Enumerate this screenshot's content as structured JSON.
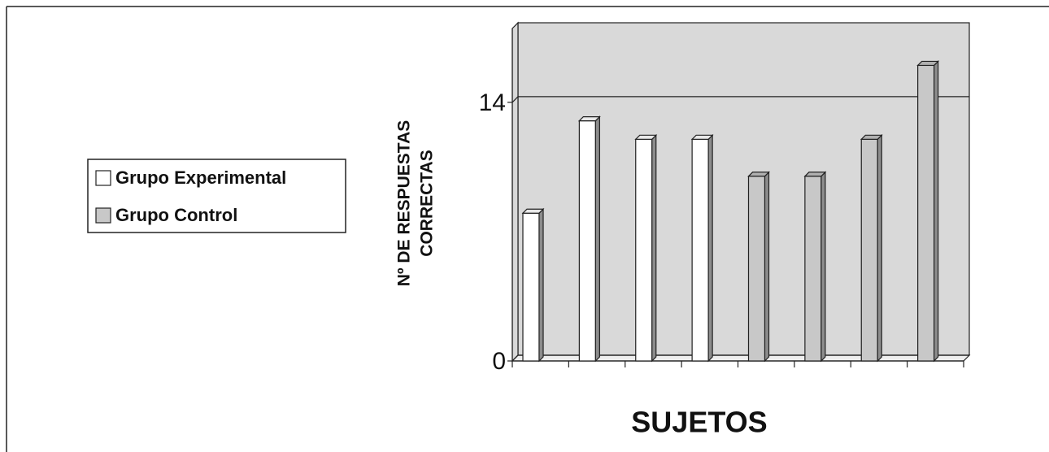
{
  "chart_data": {
    "type": "bar3d",
    "y_label": [
      "Nº DE RESPUESTAS",
      "CORRECTAS"
    ],
    "x_label": "SUJETOS",
    "categories": [
      null,
      null,
      null,
      null,
      null,
      null,
      null,
      null
    ],
    "series": [
      {
        "name": "Grupo Experimental",
        "color": "#ffffff",
        "values": [
          8,
          13,
          12,
          12,
          null,
          null,
          null,
          null
        ]
      },
      {
        "name": "Grupo Control",
        "color": "#c8c8c8",
        "values": [
          null,
          null,
          null,
          null,
          10,
          10,
          12,
          16
        ]
      }
    ],
    "ylim": [
      0,
      18
    ],
    "yticks": [
      0,
      14
    ],
    "grid": true,
    "legend": "left"
  }
}
